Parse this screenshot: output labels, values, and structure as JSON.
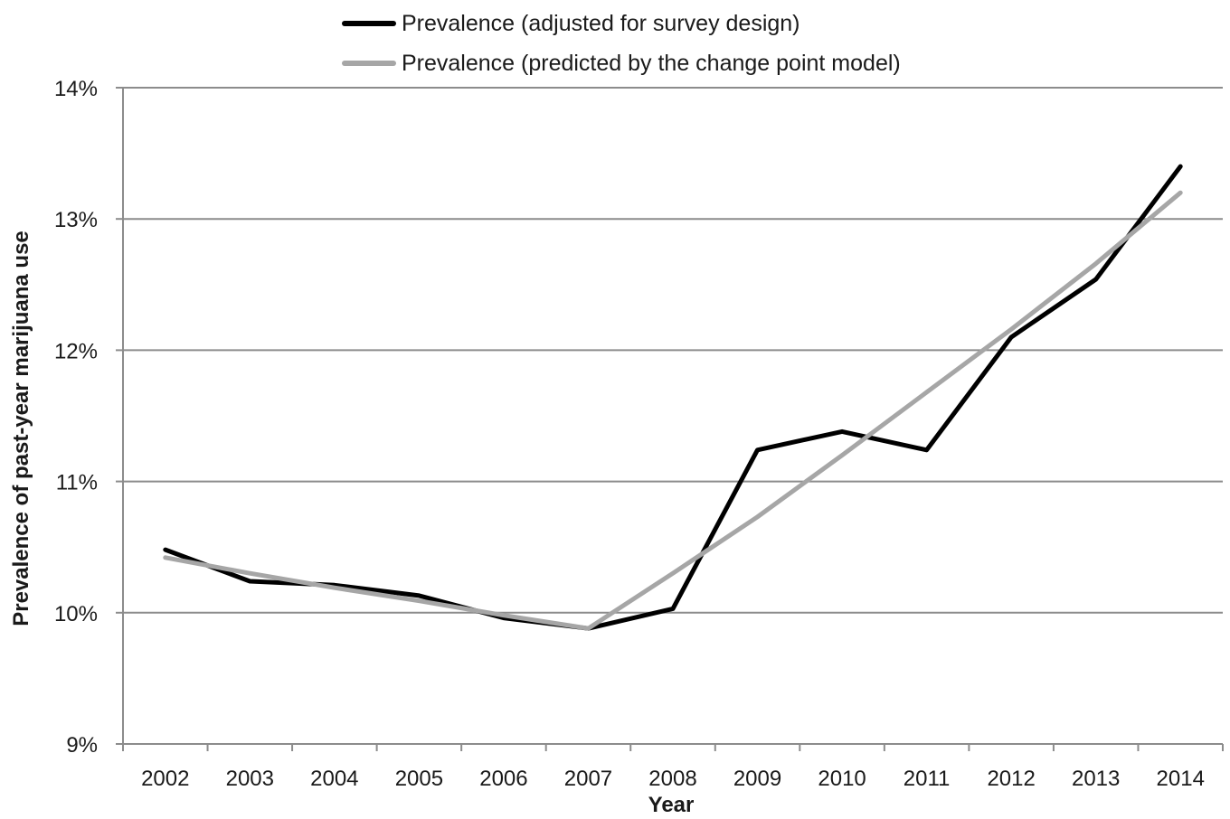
{
  "chart_data": {
    "type": "line",
    "title": "",
    "xlabel": "Year",
    "ylabel": "Prevalence of past-year marijuana use",
    "categories": [
      "2002",
      "2003",
      "2004",
      "2005",
      "2006",
      "2007",
      "2008",
      "2009",
      "2010",
      "2011",
      "2012",
      "2013",
      "2014"
    ],
    "ylim": [
      9,
      14
    ],
    "yticks": [
      "9%",
      "10%",
      "11%",
      "12%",
      "13%",
      "14%"
    ],
    "grid": true,
    "legend_position": "top",
    "series": [
      {
        "name": "Prevalence (adjusted for survey design)",
        "color": "#000000",
        "values": [
          10.48,
          10.24,
          10.21,
          10.13,
          9.96,
          9.88,
          10.03,
          11.24,
          11.38,
          11.24,
          12.1,
          12.54,
          13.4
        ]
      },
      {
        "name": "Prevalence (predicted by the change point model)",
        "color": "#a6a6a6",
        "values": [
          10.42,
          10.3,
          10.19,
          10.09,
          9.98,
          9.88,
          10.3,
          10.73,
          11.2,
          11.68,
          12.16,
          12.66,
          13.2
        ]
      }
    ]
  }
}
